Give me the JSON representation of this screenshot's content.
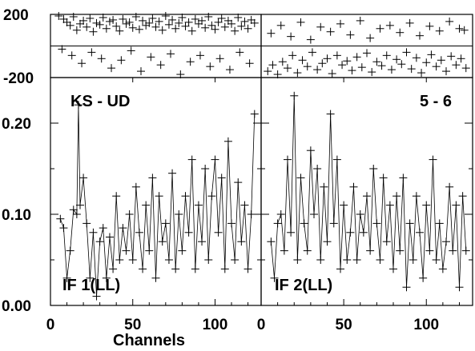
{
  "chart_data": {
    "type": "scatter",
    "xlabel": "Channels",
    "x_ticks": [
      0,
      50,
      100
    ],
    "xlim": [
      0,
      128
    ],
    "panels": [
      {
        "name": "IF 1(LL)",
        "baseline": "KS - UD",
        "phase": {
          "ylim": [
            -200,
            200
          ],
          "yticks": [
            200,
            -200
          ],
          "x": [
            5,
            8,
            10,
            12,
            14,
            16,
            18,
            20,
            22,
            24,
            26,
            28,
            30,
            32,
            34,
            36,
            38,
            40,
            42,
            44,
            46,
            48,
            50,
            52,
            54,
            56,
            58,
            60,
            62,
            64,
            66,
            68,
            70,
            72,
            74,
            76,
            78,
            80,
            82,
            84,
            86,
            88,
            90,
            92,
            94,
            96,
            98,
            100,
            102,
            104,
            106,
            108,
            110,
            112,
            114,
            116,
            118,
            120,
            122,
            124,
            7,
            13,
            19,
            25,
            31,
            37,
            43,
            49,
            55,
            61,
            67,
            73,
            79,
            85,
            91,
            97,
            103,
            109,
            115,
            121
          ],
          "values": [
            190,
            170,
            150,
            130,
            185,
            100,
            140,
            160,
            120,
            175,
            90,
            145,
            135,
            180,
            110,
            155,
            165,
            125,
            95,
            170,
            140,
            150,
            115,
            185,
            105,
            160,
            130,
            145,
            175,
            120,
            155,
            100,
            190,
            135,
            165,
            110,
            145,
            180,
            125,
            150,
            95,
            170,
            140,
            160,
            115,
            185,
            130,
            105,
            150,
            175,
            120,
            160,
            140,
            95,
            180,
            125,
            155,
            110,
            165,
            145,
            -20,
            -60,
            -110,
            -40,
            -80,
            -140,
            -90,
            -30,
            -160,
            -70,
            -120,
            -50,
            -180,
            -100,
            -60,
            -130,
            -80,
            -150,
            -40,
            -110
          ]
        },
        "amplitude": {
          "ylim": [
            0,
            0.25
          ],
          "yticks": [
            0.0,
            0.1,
            0.2
          ],
          "ytick_labels": [
            "0.00",
            "0.10",
            "0.20"
          ],
          "x": [
            6,
            8,
            10,
            12,
            14,
            16,
            17,
            18,
            20,
            22,
            24,
            26,
            28,
            30,
            32,
            34,
            36,
            38,
            40,
            42,
            44,
            46,
            48,
            50,
            52,
            54,
            56,
            58,
            60,
            62,
            64,
            66,
            68,
            70,
            72,
            74,
            76,
            78,
            80,
            82,
            84,
            86,
            88,
            90,
            92,
            94,
            96,
            98,
            100,
            102,
            104,
            106,
            108,
            110,
            112,
            114,
            116,
            118,
            120,
            122,
            124
          ],
          "values": [
            0.095,
            0.085,
            0.03,
            0.06,
            0.105,
            0.1,
            0.22,
            0.11,
            0.14,
            0.09,
            0.03,
            0.08,
            0.01,
            0.07,
            0.085,
            0.03,
            0.075,
            0.04,
            0.12,
            0.05,
            0.085,
            0.06,
            0.1,
            0.05,
            0.13,
            0.08,
            0.04,
            0.11,
            0.06,
            0.14,
            0.03,
            0.12,
            0.07,
            0.09,
            0.05,
            0.145,
            0.04,
            0.1,
            0.06,
            0.12,
            0.08,
            0.16,
            0.04,
            0.11,
            0.07,
            0.15,
            0.05,
            0.12,
            0.16,
            0.08,
            0.14,
            0.04,
            0.18,
            0.09,
            0.05,
            0.135,
            0.07,
            0.11,
            0.04,
            0.1,
            0.21
          ]
        }
      },
      {
        "name": "IF 2(LL)",
        "baseline": "5 - 6",
        "phase": {
          "ylim": [
            -200,
            200
          ],
          "x": [
            4,
            7,
            10,
            13,
            16,
            19,
            22,
            25,
            28,
            31,
            34,
            37,
            40,
            43,
            46,
            49,
            52,
            55,
            58,
            61,
            64,
            67,
            70,
            73,
            76,
            79,
            82,
            85,
            88,
            91,
            94,
            97,
            100,
            103,
            106,
            109,
            112,
            115,
            118,
            121,
            124,
            6,
            12,
            18,
            24,
            30,
            36,
            42,
            48,
            54,
            60,
            66,
            72,
            78,
            84,
            90,
            96,
            102,
            108,
            114,
            120,
            123
          ],
          "values": [
            -160,
            -120,
            -180,
            -100,
            -140,
            -60,
            -170,
            -90,
            -130,
            -40,
            -150,
            -110,
            -80,
            -175,
            -60,
            -120,
            -95,
            -155,
            -70,
            -135,
            -45,
            -165,
            -100,
            -125,
            -60,
            -150,
            -85,
            -115,
            -40,
            -145,
            -75,
            -170,
            -105,
            -55,
            -130,
            -90,
            -160,
            -65,
            -120,
            -80,
            -140,
            80,
            130,
            60,
            150,
            40,
            120,
            90,
            140,
            70,
            160,
            50,
            110,
            130,
            85,
            145,
            65,
            125,
            95,
            155,
            110,
            100
          ]
        },
        "amplitude": {
          "ylim": [
            0,
            0.25
          ],
          "x": [
            6,
            8,
            10,
            12,
            14,
            16,
            18,
            20,
            22,
            24,
            26,
            28,
            30,
            32,
            34,
            36,
            38,
            40,
            42,
            44,
            46,
            48,
            50,
            52,
            54,
            56,
            58,
            60,
            62,
            64,
            66,
            68,
            70,
            72,
            74,
            76,
            78,
            80,
            82,
            84,
            86,
            88,
            90,
            92,
            94,
            96,
            98,
            100,
            102,
            104,
            106,
            108,
            110,
            112,
            114,
            116,
            118,
            120,
            122,
            124
          ],
          "values": [
            0.07,
            0.03,
            0.09,
            0.1,
            0.06,
            0.16,
            0.08,
            0.23,
            0.05,
            0.14,
            0.09,
            0.06,
            0.17,
            0.1,
            0.15,
            0.05,
            0.13,
            0.07,
            0.21,
            0.09,
            0.16,
            0.04,
            0.11,
            0.05,
            0.08,
            0.13,
            0.05,
            0.1,
            0.08,
            0.12,
            0.06,
            0.15,
            0.09,
            0.05,
            0.14,
            0.07,
            0.11,
            0.04,
            0.12,
            0.06,
            0.14,
            0.02,
            0.09,
            0.05,
            0.12,
            0.08,
            0.03,
            0.11,
            0.06,
            0.16,
            0.05,
            0.09,
            0.04,
            0.07,
            0.13,
            0.06,
            0.11,
            0.02,
            0.12,
            0.06
          ]
        }
      }
    ]
  }
}
